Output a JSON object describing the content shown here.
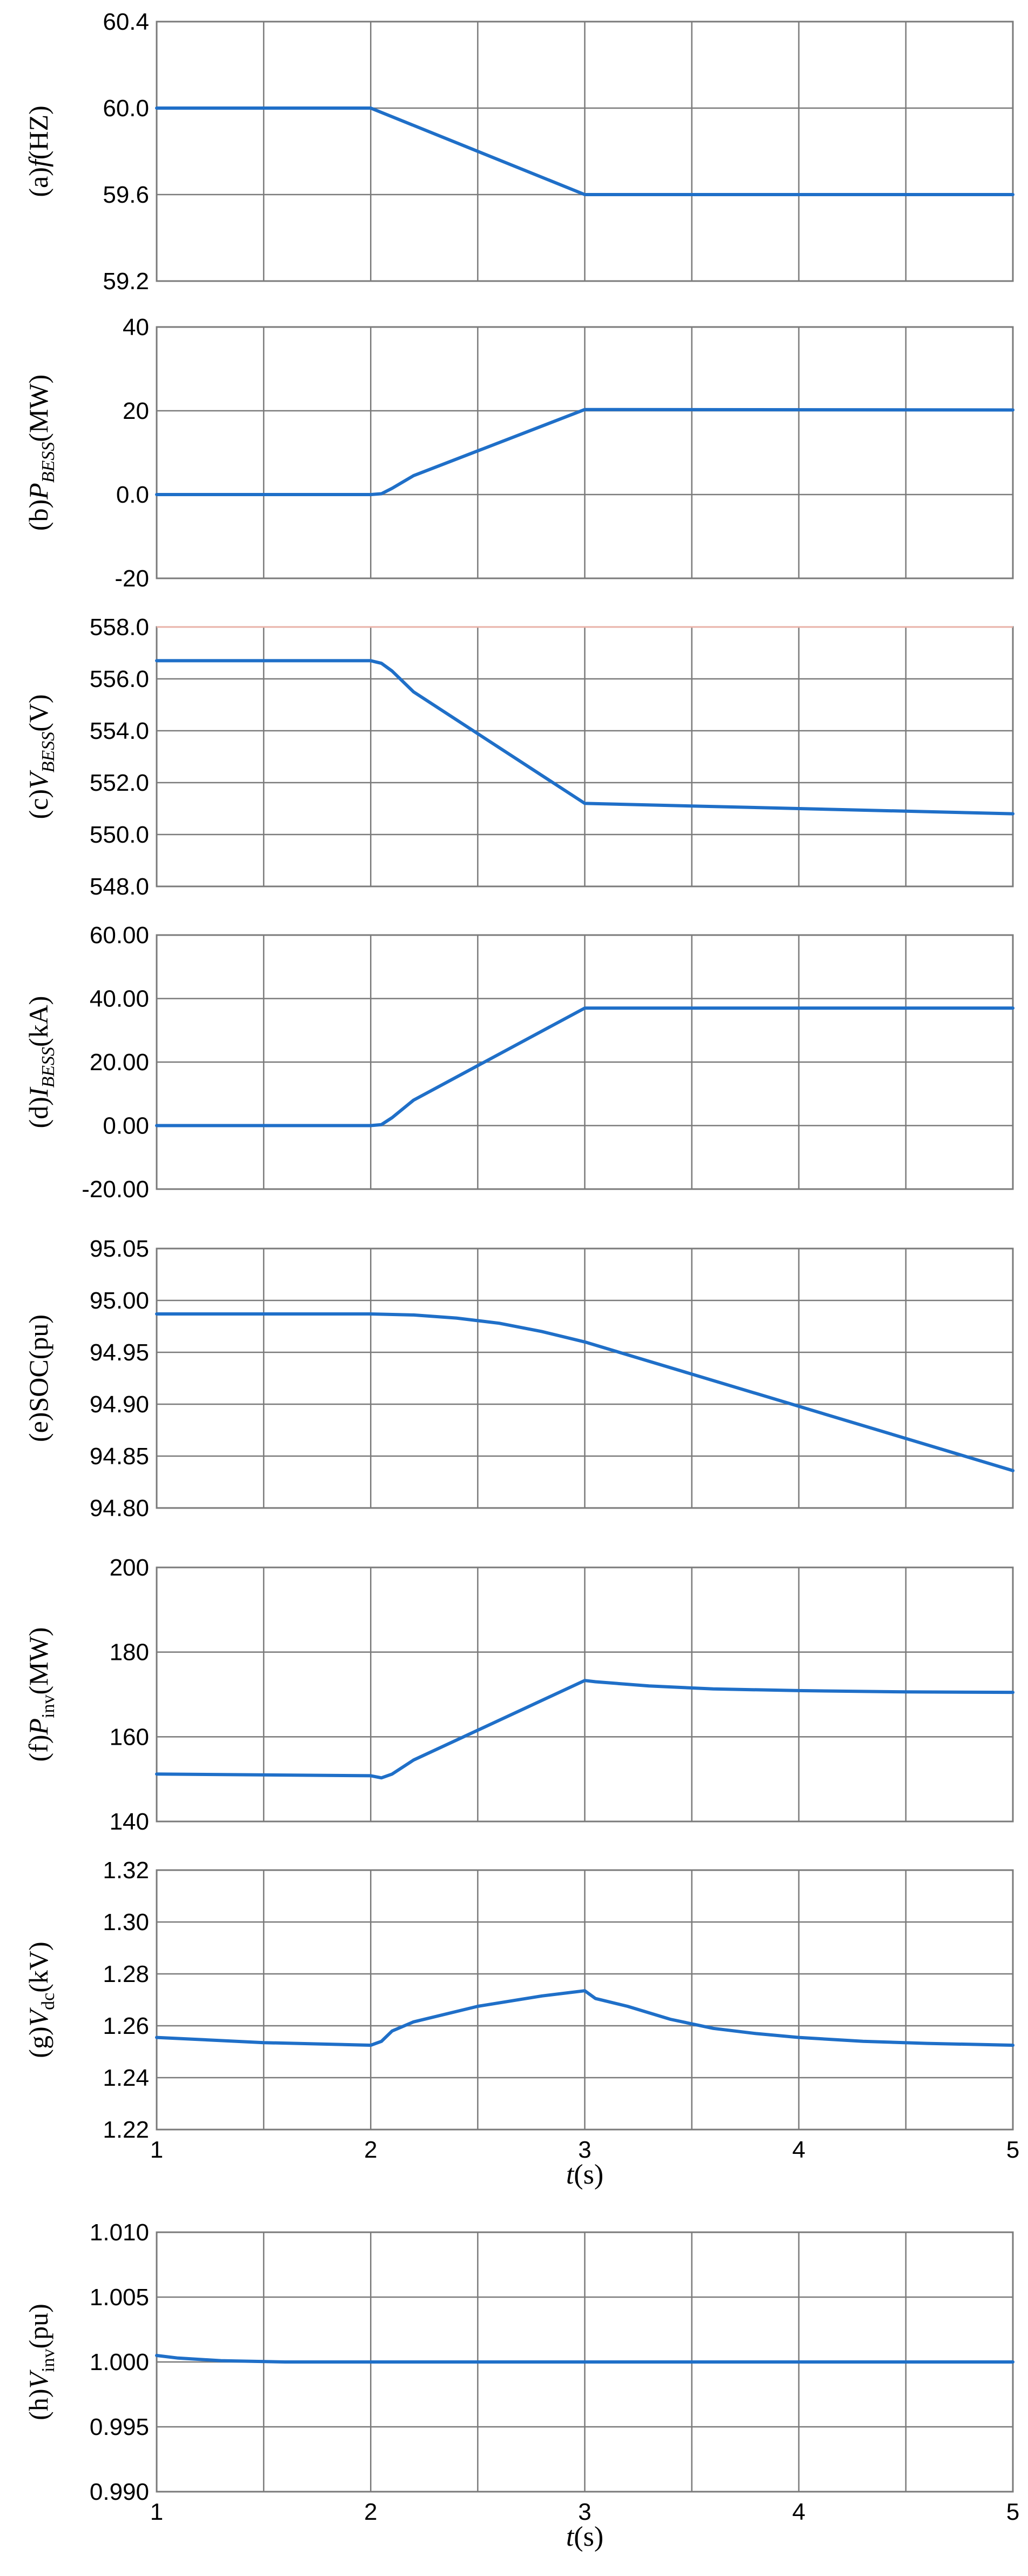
{
  "colors": {
    "trace": "#1f6fc8",
    "grid": "#7a7a7a",
    "accent_line": "#e8b2a8"
  },
  "chart_data": [
    {
      "type": "line",
      "ylabel_parts": [
        "(a)",
        "f",
        "(HZ)"
      ],
      "ylabel_sub": "",
      "yticks": [
        "60.4",
        "60.0",
        "59.6",
        "59.2"
      ],
      "ylim": [
        59.2,
        60.4
      ],
      "xlim": [
        1,
        5
      ],
      "show_xticks": false,
      "show_xlabel": false,
      "series": [
        {
          "x": [
            1,
            2,
            3,
            5
          ],
          "y": [
            60.0,
            60.0,
            59.6,
            59.6
          ]
        }
      ]
    },
    {
      "type": "line",
      "ylabel_parts": [
        "(b)",
        "P",
        "(MW)"
      ],
      "ylabel_sub": "BESS",
      "yticks": [
        "40",
        "20",
        "0.0",
        "-20"
      ],
      "ylim": [
        -20,
        40
      ],
      "xlim": [
        1,
        5
      ],
      "show_xticks": false,
      "show_xlabel": false,
      "series": [
        {
          "x": [
            1,
            2,
            2.05,
            2.1,
            2.2,
            3,
            5
          ],
          "y": [
            0,
            0,
            0.2,
            1.5,
            4.5,
            20.3,
            20.2
          ]
        }
      ]
    },
    {
      "type": "line",
      "ylabel_parts": [
        "(c)",
        "V",
        "(V)"
      ],
      "ylabel_sub": "BESS",
      "yticks": [
        "558.0",
        "556.0",
        "554.0",
        "552.0",
        "550.0",
        "548.0"
      ],
      "ylim": [
        548,
        558
      ],
      "xlim": [
        1,
        5
      ],
      "top_line_colored": true,
      "show_xticks": false,
      "show_xlabel": false,
      "series": [
        {
          "x": [
            1,
            2,
            2.05,
            2.1,
            2.2,
            3,
            5
          ],
          "y": [
            556.7,
            556.7,
            556.6,
            556.3,
            555.5,
            551.2,
            550.8
          ]
        }
      ]
    },
    {
      "type": "line",
      "ylabel_parts": [
        "(d)",
        "I",
        "(kA)"
      ],
      "ylabel_sub": "BESS",
      "yticks": [
        "60.00",
        "40.00",
        "20.00",
        "0.00",
        "-20.00"
      ],
      "ylim": [
        -20,
        60
      ],
      "xlim": [
        1,
        5
      ],
      "show_xticks": false,
      "show_xlabel": false,
      "series": [
        {
          "x": [
            1,
            2,
            2.05,
            2.1,
            2.2,
            3,
            5
          ],
          "y": [
            0,
            0,
            0.3,
            2.5,
            8,
            37,
            37
          ]
        }
      ]
    },
    {
      "type": "line",
      "ylabel_parts": [
        "(e)SOC(pu)",
        "",
        ""
      ],
      "ylabel_sub": "",
      "yticks": [
        "95.05",
        "95.00",
        "94.95",
        "94.90",
        "94.85",
        "94.80"
      ],
      "ylim": [
        94.8,
        95.05
      ],
      "xlim": [
        1,
        5
      ],
      "show_xticks": false,
      "show_xlabel": false,
      "series": [
        {
          "x": [
            1,
            2,
            2.2,
            2.4,
            2.6,
            2.8,
            3,
            5
          ],
          "y": [
            94.987,
            94.987,
            94.986,
            94.983,
            94.978,
            94.97,
            94.96,
            94.836
          ]
        }
      ]
    },
    {
      "type": "line",
      "ylabel_parts": [
        "(f)",
        "P",
        "(MW)"
      ],
      "ylabel_sub": "inv",
      "yticks": [
        "200",
        "180",
        "160",
        "140"
      ],
      "ylim": [
        140,
        200
      ],
      "xlim": [
        1,
        5
      ],
      "show_xticks": false,
      "show_xlabel": false,
      "series": [
        {
          "x": [
            1,
            2,
            2.05,
            2.1,
            2.2,
            3,
            3.05,
            3.3,
            3.6,
            4,
            4.5,
            5
          ],
          "y": [
            151.2,
            150.8,
            150.3,
            151.2,
            154.5,
            173.3,
            173,
            172,
            171.3,
            170.9,
            170.6,
            170.5
          ]
        }
      ]
    },
    {
      "type": "line",
      "ylabel_parts": [
        "(g)",
        "V",
        "(kV)"
      ],
      "ylabel_sub": "dc",
      "yticks": [
        "1.32",
        "1.30",
        "1.28",
        "1.26",
        "1.24",
        "1.22"
      ],
      "ylim": [
        1.22,
        1.32
      ],
      "xlim": [
        1,
        5
      ],
      "show_xticks": true,
      "show_xlabel": true,
      "xticks": [
        "1",
        "2",
        "3",
        "4",
        "5"
      ],
      "xlabel_parts": [
        "t",
        "(s)"
      ],
      "series": [
        {
          "x": [
            1,
            1.5,
            2,
            2.05,
            2.1,
            2.2,
            2.5,
            2.8,
            3,
            3.05,
            3.2,
            3.4,
            3.6,
            3.8,
            4,
            4.3,
            4.6,
            5
          ],
          "y": [
            1.2555,
            1.2535,
            1.2525,
            1.254,
            1.258,
            1.2615,
            1.2675,
            1.2715,
            1.2735,
            1.2705,
            1.2675,
            1.2625,
            1.259,
            1.257,
            1.2555,
            1.254,
            1.2532,
            1.2525
          ]
        }
      ]
    },
    {
      "type": "line",
      "ylabel_parts": [
        "(h)",
        "V",
        "(pu)"
      ],
      "ylabel_sub": "inv",
      "yticks": [
        "1.010",
        "1.005",
        "1.000",
        "0.995",
        "0.990"
      ],
      "ylim": [
        0.99,
        1.01
      ],
      "xlim": [
        1,
        5
      ],
      "show_xticks": true,
      "show_xlabel": true,
      "xticks": [
        "1",
        "2",
        "3",
        "4",
        "5"
      ],
      "xlabel_parts": [
        "t",
        "(s)"
      ],
      "series": [
        {
          "x": [
            1,
            1.1,
            1.3,
            1.6,
            5
          ],
          "y": [
            1.0005,
            1.0003,
            1.0001,
            1.0,
            1.0
          ]
        }
      ]
    }
  ]
}
